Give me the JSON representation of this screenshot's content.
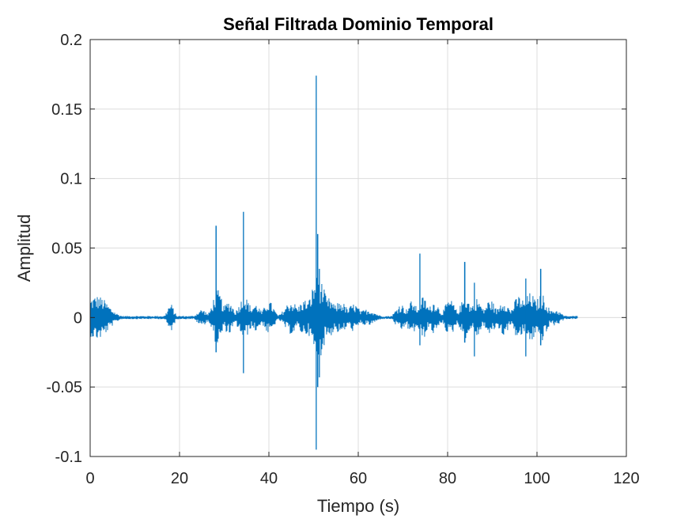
{
  "chart_data": {
    "type": "line",
    "title": "Señal Filtrada Dominio Temporal",
    "xlabel": "Tiempo (s)",
    "ylabel": "Amplitud",
    "xlim": [
      0,
      120
    ],
    "ylim": [
      -0.1,
      0.2
    ],
    "xticks": [
      0,
      20,
      40,
      60,
      80,
      100,
      120
    ],
    "xtick_labels": [
      "0",
      "20",
      "40",
      "60",
      "80",
      "100",
      "120"
    ],
    "yticks": [
      -0.1,
      -0.05,
      0,
      0.05,
      0.1,
      0.15,
      0.2
    ],
    "ytick_labels": [
      "-0.1",
      "-0.05",
      "0",
      "0.05",
      "0.1",
      "0.15",
      "0.2"
    ],
    "grid": true,
    "series_color": "#0072BD",
    "grid_color": "#dcdcdc",
    "axis_color": "#262626",
    "signal_duration_s": 109,
    "bursts": [
      {
        "t": 1.5,
        "amp": 0.016,
        "width": 3.5
      },
      {
        "t": 18.0,
        "amp": 0.01,
        "width": 1.0
      },
      {
        "t": 25.0,
        "amp": 0.006,
        "width": 1.5
      },
      {
        "t": 28.5,
        "amp": 0.02,
        "width": 1.5
      },
      {
        "t": 31.0,
        "amp": 0.012,
        "width": 1.5
      },
      {
        "t": 34.5,
        "amp": 0.015,
        "width": 1.8
      },
      {
        "t": 37.0,
        "amp": 0.01,
        "width": 1.5
      },
      {
        "t": 40.0,
        "amp": 0.012,
        "width": 1.5
      },
      {
        "t": 45.0,
        "amp": 0.012,
        "width": 2.0
      },
      {
        "t": 48.0,
        "amp": 0.013,
        "width": 2.0
      },
      {
        "t": 51.0,
        "amp": 0.03,
        "width": 2.2
      },
      {
        "t": 53.5,
        "amp": 0.014,
        "width": 1.8
      },
      {
        "t": 56.0,
        "amp": 0.012,
        "width": 2.0
      },
      {
        "t": 59.0,
        "amp": 0.01,
        "width": 1.8
      },
      {
        "t": 62.0,
        "amp": 0.006,
        "width": 2.5
      },
      {
        "t": 69.5,
        "amp": 0.01,
        "width": 1.5
      },
      {
        "t": 72.0,
        "amp": 0.012,
        "width": 1.5
      },
      {
        "t": 74.5,
        "amp": 0.015,
        "width": 1.5
      },
      {
        "t": 77.0,
        "amp": 0.012,
        "width": 1.5
      },
      {
        "t": 80.5,
        "amp": 0.013,
        "width": 1.6
      },
      {
        "t": 84.0,
        "amp": 0.015,
        "width": 1.6
      },
      {
        "t": 86.5,
        "amp": 0.014,
        "width": 1.6
      },
      {
        "t": 89.5,
        "amp": 0.013,
        "width": 1.6
      },
      {
        "t": 92.5,
        "amp": 0.013,
        "width": 1.6
      },
      {
        "t": 96.0,
        "amp": 0.016,
        "width": 1.8
      },
      {
        "t": 98.5,
        "amp": 0.018,
        "width": 1.8
      },
      {
        "t": 101.0,
        "amp": 0.017,
        "width": 1.8
      },
      {
        "t": 104.0,
        "amp": 0.006,
        "width": 1.8
      }
    ],
    "spikes": [
      {
        "t": 28.2,
        "max": 0.066,
        "min": -0.025
      },
      {
        "t": 34.3,
        "max": 0.076,
        "min": -0.04
      },
      {
        "t": 50.6,
        "max": 0.174,
        "min": -0.095
      },
      {
        "t": 50.9,
        "max": 0.06,
        "min": -0.05
      },
      {
        "t": 51.3,
        "max": 0.035,
        "min": -0.043
      },
      {
        "t": 73.8,
        "max": 0.046,
        "min": -0.02
      },
      {
        "t": 83.8,
        "max": 0.04,
        "min": -0.018
      },
      {
        "t": 86.0,
        "max": 0.025,
        "min": -0.028
      },
      {
        "t": 97.5,
        "max": 0.028,
        "min": -0.028
      },
      {
        "t": 100.8,
        "max": 0.035,
        "min": -0.02
      }
    ]
  }
}
